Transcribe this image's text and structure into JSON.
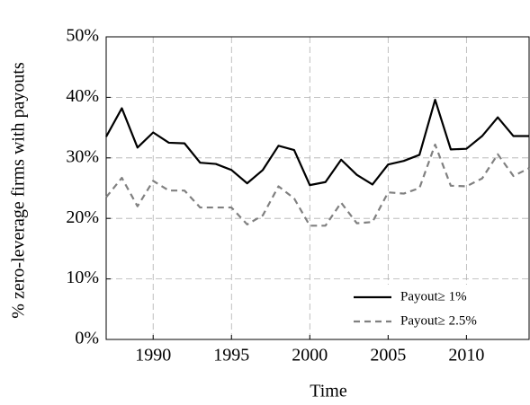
{
  "chart_data": {
    "type": "line",
    "xlabel": "Time",
    "ylabel": "% zero-leverage firms with payouts",
    "x": [
      1987,
      1988,
      1989,
      1990,
      1991,
      1992,
      1993,
      1994,
      1995,
      1996,
      1997,
      1998,
      1999,
      2000,
      2001,
      2002,
      2003,
      2004,
      2005,
      2006,
      2007,
      2008,
      2009,
      2010,
      2011,
      2012,
      2013,
      2014
    ],
    "series": [
      {
        "name": "Payout≥ 1%",
        "color": "#000000",
        "dash": "solid",
        "values": [
          33.5,
          38.2,
          31.7,
          34.2,
          32.5,
          32.4,
          29.2,
          29.0,
          28.0,
          25.8,
          28.0,
          32.0,
          31.3,
          25.5,
          26.0,
          29.7,
          27.2,
          25.6,
          28.9,
          29.5,
          30.5,
          39.6,
          31.4,
          31.5,
          33.6,
          36.7,
          33.6,
          33.6
        ]
      },
      {
        "name": "Payout≥ 2.5%",
        "color": "#808080",
        "dash": "dashed",
        "values": [
          23.5,
          26.7,
          22.0,
          26.2,
          24.6,
          24.6,
          21.8,
          21.8,
          21.8,
          19.0,
          20.5,
          25.3,
          23.3,
          18.8,
          18.8,
          22.6,
          19.2,
          19.4,
          24.3,
          24.1,
          25.0,
          32.2,
          25.4,
          25.3,
          26.6,
          30.6,
          27.0,
          28.3
        ]
      }
    ],
    "xlim": [
      1987,
      2014
    ],
    "xticks": [
      1990,
      1995,
      2000,
      2005,
      2010
    ],
    "ylim": [
      0,
      50
    ],
    "yticks": [
      {
        "value": 0,
        "label": "0%"
      },
      {
        "value": 10,
        "label": "10%"
      },
      {
        "value": 20,
        "label": "20%"
      },
      {
        "value": 30,
        "label": "30%"
      },
      {
        "value": 40,
        "label": "40%"
      },
      {
        "value": 50,
        "label": "50%"
      }
    ],
    "grid": true,
    "legend": "lower right"
  }
}
